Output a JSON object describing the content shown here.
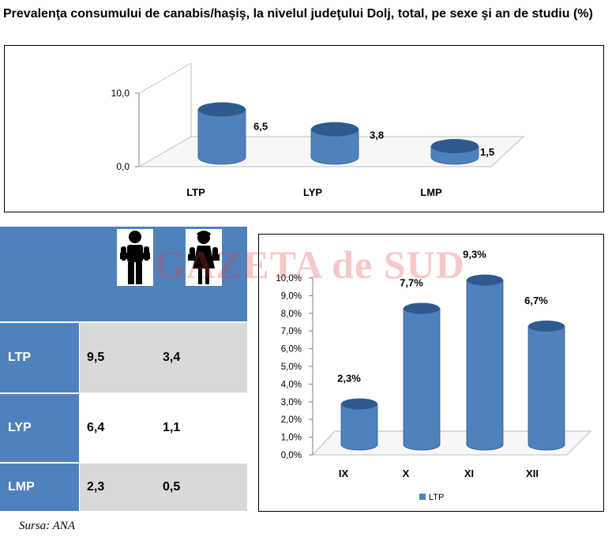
{
  "title": "Prevalenţa consumului de canabis/haşiş, la nivelul judeţului Dolj, total, pe sexe şi an de studiu (%)",
  "watermark": "GAZETA de SUD",
  "source": "Sursa: ANA",
  "colors": {
    "bar": "#4f81bd",
    "bar_dark": "#2e5a8e",
    "table_header": "#4f81bd",
    "table_shade": "#d9d9d9"
  },
  "chart_data": [
    {
      "type": "bar",
      "categories": [
        "LTP",
        "LYP",
        "LMP"
      ],
      "values": [
        6.5,
        3.8,
        1.5
      ],
      "value_labels": [
        "6,5",
        "3,8",
        "1,5"
      ],
      "y_ticks": [
        "0,0",
        "10,0"
      ],
      "ylim": [
        0,
        10
      ],
      "grid": false
    },
    {
      "type": "bar",
      "categories": [
        "IX",
        "X",
        "XI",
        "XII"
      ],
      "series": [
        {
          "name": "LTP",
          "values": [
            2.3,
            7.7,
            9.3,
            6.7
          ],
          "value_labels": [
            "2,3%",
            "7,7%",
            "9,3%",
            "6,7%"
          ]
        }
      ],
      "y_ticks": [
        "0,0%",
        "1,0%",
        "2,0%",
        "3,0%",
        "4,0%",
        "5,0%",
        "6,0%",
        "7,0%",
        "8,0%",
        "9,0%",
        "10,0%"
      ],
      "ylim": [
        0,
        10
      ],
      "legend_position": "bottom",
      "grid": false
    },
    {
      "type": "table",
      "header_icons": [
        "male-figure-icon",
        "female-figure-icon"
      ],
      "rows": [
        {
          "label": "LTP",
          "values": [
            "9,5",
            "3,4"
          ]
        },
        {
          "label": "LYP",
          "values": [
            "6,4",
            "1,1"
          ]
        },
        {
          "label": "LMP",
          "values": [
            "2,3",
            "0,5"
          ]
        }
      ]
    }
  ]
}
